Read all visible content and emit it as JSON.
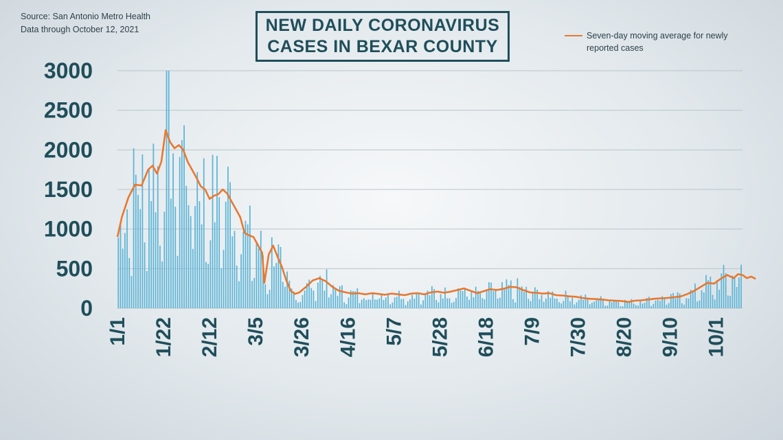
{
  "header": {
    "source_line": "Source: San Antonio Metro Health",
    "data_line": "Data through  October 12, 2021",
    "title_line1": "NEW DAILY CORONAVIRUS",
    "title_line2": "CASES IN BEXAR COUNTY"
  },
  "legend": {
    "label_line1": "Seven-day moving average for newly",
    "label_line2": "reported cases"
  },
  "colors": {
    "bar": "#5db4d6",
    "line": "#e8782f",
    "text": "#1f4e5a",
    "grid": "#b9c5cb"
  },
  "chart_data": {
    "type": "bar",
    "overlay": "line",
    "ylim": [
      0,
      3000
    ],
    "yticks": [
      0,
      500,
      1000,
      1500,
      2000,
      2500,
      3000
    ],
    "xticks": [
      "1/1",
      "1/22",
      "2/12",
      "3/5",
      "3/26",
      "4/16",
      "5/7",
      "5/28",
      "6/18",
      "7/9",
      "7/30",
      "8/20",
      "9/10",
      "10/1"
    ],
    "grid": "horizontal",
    "legend_placement": "top-right",
    "days": 285,
    "series": [
      {
        "name": "Seven-day moving average for newly reported cases",
        "type": "line",
        "points": [
          [
            0,
            900
          ],
          [
            2,
            1150
          ],
          [
            5,
            1400
          ],
          [
            8,
            1560
          ],
          [
            11,
            1550
          ],
          [
            14,
            1750
          ],
          [
            16,
            1800
          ],
          [
            18,
            1700
          ],
          [
            20,
            1850
          ],
          [
            22,
            2250
          ],
          [
            24,
            2100
          ],
          [
            26,
            2020
          ],
          [
            28,
            2060
          ],
          [
            30,
            2000
          ],
          [
            32,
            1850
          ],
          [
            34,
            1750
          ],
          [
            36,
            1650
          ],
          [
            38,
            1540
          ],
          [
            40,
            1500
          ],
          [
            42,
            1380
          ],
          [
            44,
            1420
          ],
          [
            46,
            1440
          ],
          [
            48,
            1500
          ],
          [
            50,
            1450
          ],
          [
            52,
            1350
          ],
          [
            54,
            1250
          ],
          [
            56,
            1150
          ],
          [
            58,
            950
          ],
          [
            60,
            920
          ],
          [
            62,
            900
          ],
          [
            64,
            800
          ],
          [
            66,
            700
          ],
          [
            67,
            320
          ],
          [
            69,
            680
          ],
          [
            71,
            790
          ],
          [
            73,
            650
          ],
          [
            75,
            520
          ],
          [
            77,
            350
          ],
          [
            79,
            220
          ],
          [
            81,
            180
          ],
          [
            83,
            200
          ],
          [
            86,
            270
          ],
          [
            89,
            350
          ],
          [
            92,
            380
          ],
          [
            95,
            340
          ],
          [
            98,
            270
          ],
          [
            101,
            220
          ],
          [
            104,
            200
          ],
          [
            107,
            185
          ],
          [
            110,
            190
          ],
          [
            113,
            175
          ],
          [
            116,
            190
          ],
          [
            119,
            180
          ],
          [
            122,
            170
          ],
          [
            125,
            185
          ],
          [
            128,
            175
          ],
          [
            131,
            165
          ],
          [
            134,
            185
          ],
          [
            137,
            190
          ],
          [
            140,
            175
          ],
          [
            143,
            200
          ],
          [
            146,
            210
          ],
          [
            149,
            195
          ],
          [
            152,
            210
          ],
          [
            155,
            230
          ],
          [
            158,
            250
          ],
          [
            161,
            220
          ],
          [
            164,
            190
          ],
          [
            167,
            215
          ],
          [
            170,
            240
          ],
          [
            173,
            230
          ],
          [
            176,
            245
          ],
          [
            179,
            270
          ],
          [
            182,
            265
          ],
          [
            185,
            230
          ],
          [
            188,
            200
          ],
          [
            191,
            195
          ],
          [
            194,
            185
          ],
          [
            197,
            190
          ],
          [
            200,
            165
          ],
          [
            203,
            160
          ],
          [
            206,
            150
          ],
          [
            209,
            145
          ],
          [
            212,
            130
          ],
          [
            215,
            120
          ],
          [
            218,
            115
          ],
          [
            221,
            110
          ],
          [
            224,
            100
          ],
          [
            227,
            95
          ],
          [
            230,
            90
          ],
          [
            233,
            80
          ],
          [
            236,
            95
          ],
          [
            239,
            100
          ],
          [
            242,
            110
          ],
          [
            245,
            120
          ],
          [
            248,
            125
          ],
          [
            251,
            130
          ],
          [
            254,
            140
          ],
          [
            257,
            150
          ],
          [
            260,
            180
          ],
          [
            263,
            220
          ],
          [
            266,
            270
          ],
          [
            269,
            320
          ],
          [
            272,
            310
          ],
          [
            275,
            370
          ],
          [
            278,
            420
          ],
          [
            281,
            380
          ],
          [
            283,
            430
          ],
          [
            285,
            420
          ],
          [
            287,
            380
          ],
          [
            289,
            400
          ],
          [
            291,
            370
          ]
        ]
      },
      {
        "name": "Daily reported cases",
        "type": "bar",
        "values": []
      }
    ]
  }
}
